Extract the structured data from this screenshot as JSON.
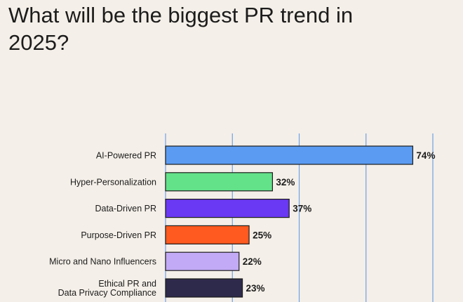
{
  "chart_data": {
    "type": "bar",
    "orientation": "horizontal",
    "title": "What will be the biggest PR trend in 2025?",
    "categories": [
      "AI-Powered PR",
      "Hyper-Personalization",
      "Data-Driven PR",
      "Purpose-Driven PR",
      "Micro and Nano Influencers",
      "Ethical PR and Data Privacy Compliance"
    ],
    "category_lines": [
      [
        "AI-Powered PR"
      ],
      [
        "Hyper-Personalization"
      ],
      [
        "Data-Driven PR"
      ],
      [
        "Purpose-Driven PR"
      ],
      [
        "Micro and Nano Influencers"
      ],
      [
        "Ethical PR and",
        "Data Privacy Compliance"
      ]
    ],
    "values": [
      74,
      32,
      37,
      25,
      22,
      23
    ],
    "value_labels": [
      "74%",
      "32%",
      "37%",
      "25%",
      "22%",
      "23%"
    ],
    "colors": [
      "#5b9cf2",
      "#63e28a",
      "#6a39f3",
      "#ff5a1f",
      "#c2aaf6",
      "#2e2a4c"
    ],
    "xlim": [
      0,
      80
    ],
    "grid": true,
    "grid_color": "#6fa0e6"
  }
}
